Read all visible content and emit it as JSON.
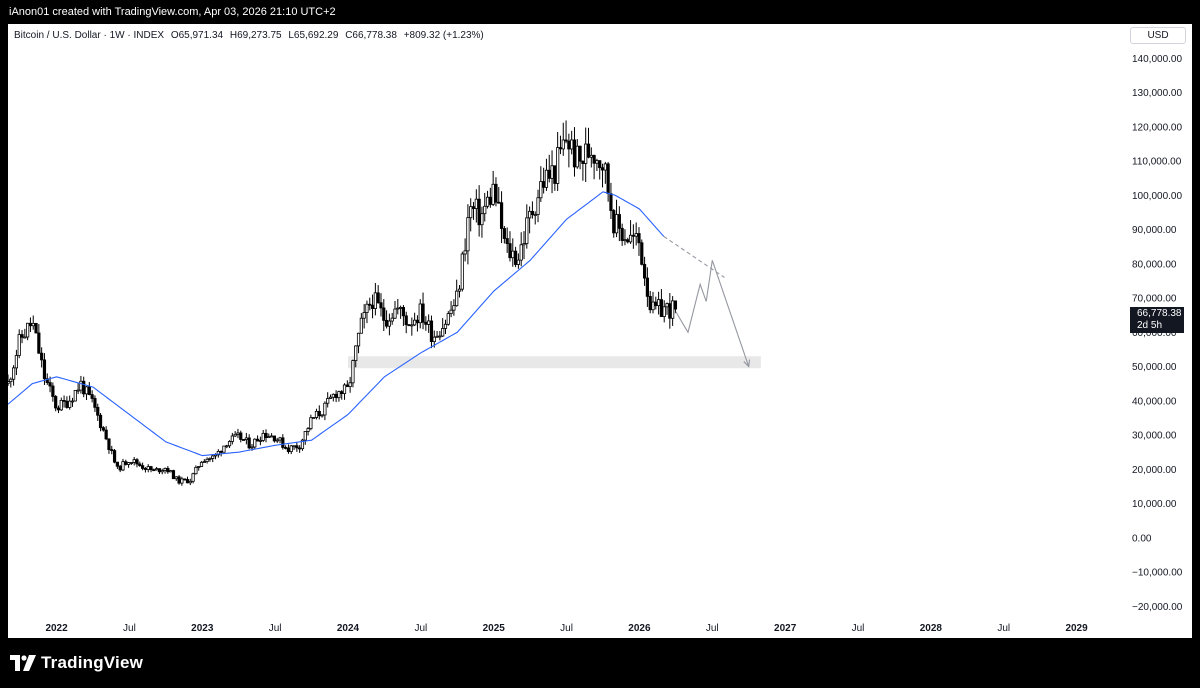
{
  "header": {
    "attribution": "iAnon01 created with TradingView.com, Apr 03, 2026 21:10 UTC+2"
  },
  "legend": {
    "symbol": "Bitcoin / U.S. Dollar · 1W · INDEX",
    "open": "O65,971.34",
    "high": "H69,273.75",
    "low": "L65,692.29",
    "close": "C66,778.38",
    "change": "+809.32 (+1.23%)"
  },
  "price_axis": {
    "currency": "USD"
  },
  "last_price": {
    "value": "66,778.38",
    "countdown": "2d 5h"
  },
  "footer": {
    "brand": "TradingView"
  },
  "colors": {
    "up_candle": "#ffffff",
    "down_candle": "#000000",
    "candle_outline": "#000000",
    "moving_average": "#2962ff",
    "projection": "#9598a1",
    "support_zone": "#e0e0e0"
  },
  "chart_data": {
    "type": "candlestick",
    "title": "Bitcoin / U.S. Dollar · 1W · INDEX",
    "timeframe": "1W",
    "y_axis": {
      "ticks": [
        -20000,
        -10000,
        0,
        10000,
        20000,
        30000,
        40000,
        50000,
        60000,
        70000,
        80000,
        90000,
        100000,
        110000,
        120000,
        130000,
        140000
      ],
      "tick_labels": [
        "−20,000.00",
        "−10,000.00",
        "0.00",
        "10,000.00",
        "20,000.00",
        "30,000.00",
        "40,000.00",
        "50,000.00",
        "60,000.00",
        "70,000.00",
        "80,000.00",
        "90,000.00",
        "100,000.00",
        "110,000.00",
        "120,000.00",
        "130,000.00",
        "140,000.00"
      ],
      "range": [
        -24000,
        150000
      ]
    },
    "x_axis": {
      "labels": [
        {
          "date": "2022-01",
          "text": "2022",
          "year": true
        },
        {
          "date": "2022-07",
          "text": "Jul",
          "year": false
        },
        {
          "date": "2023-01",
          "text": "2023",
          "year": true
        },
        {
          "date": "2023-07",
          "text": "Jul",
          "year": false
        },
        {
          "date": "2024-01",
          "text": "2024",
          "year": true
        },
        {
          "date": "2024-07",
          "text": "Jul",
          "year": false
        },
        {
          "date": "2025-01",
          "text": "2025",
          "year": true
        },
        {
          "date": "2025-07",
          "text": "Jul",
          "year": false
        },
        {
          "date": "2026-01",
          "text": "2026",
          "year": true
        },
        {
          "date": "2026-07",
          "text": "Jul",
          "year": false
        },
        {
          "date": "2027-01",
          "text": "2027",
          "year": true
        },
        {
          "date": "2027-07",
          "text": "Jul",
          "year": false
        },
        {
          "date": "2028-01",
          "text": "2028",
          "year": true
        },
        {
          "date": "2028-07",
          "text": "Jul",
          "year": false
        },
        {
          "date": "2029-01",
          "text": "2029",
          "year": true
        }
      ],
      "range": [
        "2021-09",
        "2029-04"
      ]
    },
    "price_path": [
      [
        "2021-09",
        45000
      ],
      [
        "2021-10",
        58000
      ],
      [
        "2021-11",
        63000
      ],
      [
        "2021-12",
        47000
      ],
      [
        "2022-01",
        38000
      ],
      [
        "2022-02",
        40000
      ],
      [
        "2022-03",
        45000
      ],
      [
        "2022-04",
        39000
      ],
      [
        "2022-05",
        30000
      ],
      [
        "2022-06",
        20000
      ],
      [
        "2022-07",
        23000
      ],
      [
        "2022-08",
        21000
      ],
      [
        "2022-09",
        19500
      ],
      [
        "2022-10",
        20500
      ],
      [
        "2022-11",
        16500
      ],
      [
        "2022-12",
        16800
      ],
      [
        "2023-01",
        23000
      ],
      [
        "2023-02",
        23500
      ],
      [
        "2023-03",
        28000
      ],
      [
        "2023-04",
        29500
      ],
      [
        "2023-05",
        27000
      ],
      [
        "2023-06",
        30500
      ],
      [
        "2023-07",
        29500
      ],
      [
        "2023-08",
        26000
      ],
      [
        "2023-09",
        27000
      ],
      [
        "2023-10",
        34500
      ],
      [
        "2023-11",
        37500
      ],
      [
        "2023-12",
        42500
      ],
      [
        "2024-01",
        43000
      ],
      [
        "2024-02",
        61000
      ],
      [
        "2024-03",
        70000
      ],
      [
        "2024-04",
        64000
      ],
      [
        "2024-05",
        67000
      ],
      [
        "2024-06",
        63000
      ],
      [
        "2024-07",
        66000
      ],
      [
        "2024-08",
        59000
      ],
      [
        "2024-09",
        63000
      ],
      [
        "2024-10",
        70000
      ],
      [
        "2024-11",
        96000
      ],
      [
        "2024-12",
        94000
      ],
      [
        "2025-01",
        102000
      ],
      [
        "2025-02",
        84000
      ],
      [
        "2025-03",
        82000
      ],
      [
        "2025-04",
        94000
      ],
      [
        "2025-05",
        104000
      ],
      [
        "2025-06",
        107000
      ],
      [
        "2025-07",
        117000
      ],
      [
        "2025-08",
        109000
      ],
      [
        "2025-09",
        114000
      ],
      [
        "2025-10",
        110000
      ],
      [
        "2025-11",
        91000
      ],
      [
        "2025-12",
        88000
      ],
      [
        "2026-01",
        86000
      ],
      [
        "2026-02",
        66000
      ],
      [
        "2026-03",
        67000
      ],
      [
        "2026-04",
        66778
      ]
    ],
    "moving_average": [
      [
        "2021-09",
        39000
      ],
      [
        "2021-11",
        45000
      ],
      [
        "2022-01",
        47000
      ],
      [
        "2022-04",
        44000
      ],
      [
        "2022-07",
        36000
      ],
      [
        "2022-10",
        28000
      ],
      [
        "2023-01",
        24000
      ],
      [
        "2023-04",
        25000
      ],
      [
        "2023-07",
        27000
      ],
      [
        "2023-10",
        28500
      ],
      [
        "2024-01",
        36000
      ],
      [
        "2024-04",
        47000
      ],
      [
        "2024-07",
        54000
      ],
      [
        "2024-10",
        60000
      ],
      [
        "2025-01",
        72000
      ],
      [
        "2025-04",
        81000
      ],
      [
        "2025-07",
        93000
      ],
      [
        "2025-10",
        101000
      ],
      [
        "2025-11",
        100000
      ],
      [
        "2026-01",
        96000
      ],
      [
        "2026-03",
        88000
      ]
    ],
    "ma_projection": [
      [
        "2026-03",
        88000
      ],
      [
        "2026-08",
        76000
      ]
    ],
    "support_zone": {
      "from": "2024-01",
      "to": "2026-11",
      "low": 49500,
      "high": 53000
    },
    "projection_path": [
      [
        "2026-04",
        66000
      ],
      [
        "2026-05",
        60000
      ],
      [
        "2026-06",
        74000
      ],
      [
        "2026-06",
        69000
      ],
      [
        "2026-07",
        81000
      ],
      [
        "2026-10",
        50000
      ]
    ],
    "last_value": 66778.38
  }
}
